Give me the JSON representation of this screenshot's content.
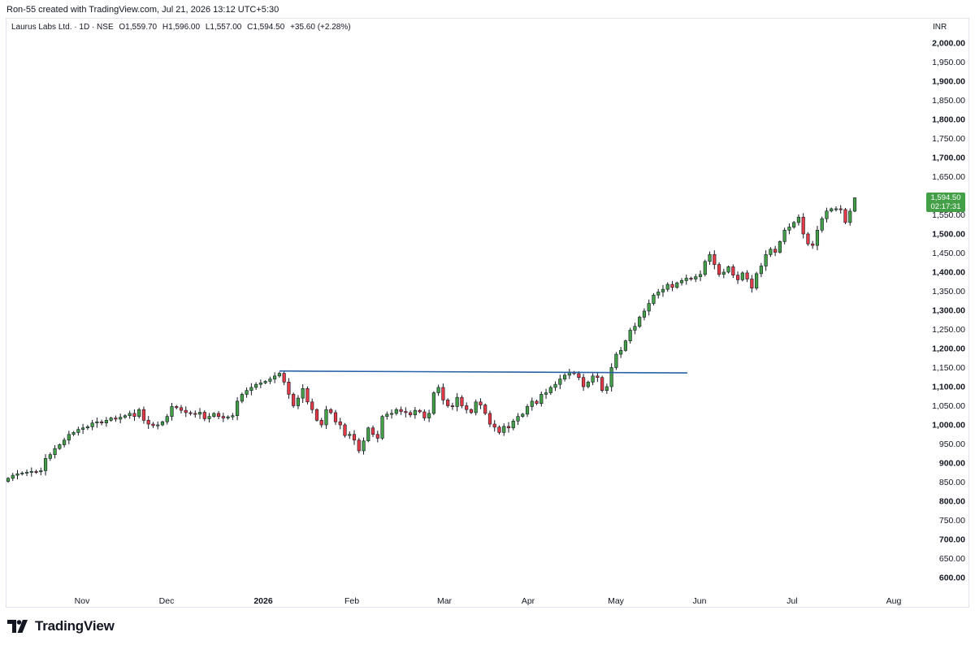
{
  "attribution": "Ron-55 created with TradingView.com, Jul 21, 2026 13:12 UTC+5:30",
  "legend": {
    "symbol": "Laurus Labs Ltd. · 1D · NSE",
    "open": "O1,559.70",
    "high": "H1,596.00",
    "low": "L1,557.00",
    "close": "C1,594.50",
    "change": "+35.60 (+2.28%)"
  },
  "currency": "INR",
  "price_tag": {
    "price": "1,594.50",
    "countdown": "02:17:31"
  },
  "brand": "TradingView",
  "colors": {
    "up": "#43a047",
    "down": "#e53946",
    "trendline": "#2962a8",
    "grid": "#e0e3eb"
  },
  "chart_data": {
    "type": "candlestick",
    "y_axis": {
      "range": [
        580,
        2020
      ],
      "ticks": [
        "2,000.00",
        "1,950.00",
        "1,900.00",
        "1,850.00",
        "1,800.00",
        "1,750.00",
        "1,700.00",
        "1,650.00",
        "1,600.00",
        "1,550.00",
        "1,500.00",
        "1,450.00",
        "1,400.00",
        "1,350.00",
        "1,300.00",
        "1,250.00",
        "1,200.00",
        "1,150.00",
        "1,100.00",
        "1,050.00",
        "1,000.00",
        "950.00",
        "900.00",
        "850.00",
        "800.00",
        "750.00",
        "700.00",
        "650.00",
        "600.00"
      ],
      "tick_values": [
        2000,
        1950,
        1900,
        1850,
        1800,
        1750,
        1700,
        1650,
        1600,
        1550,
        1500,
        1450,
        1400,
        1350,
        1300,
        1250,
        1200,
        1150,
        1100,
        1050,
        1000,
        950,
        900,
        850,
        800,
        750,
        700,
        650,
        600
      ],
      "bold_ticks": [
        "2,000.00",
        "1,900.00",
        "1,800.00",
        "1,700.00",
        "1,600.00",
        "1,500.00",
        "1,400.00",
        "1,300.00",
        "1,200.00",
        "1,100.00",
        "1,000.00",
        "900.00",
        "800.00",
        "700.00",
        "600.00"
      ]
    },
    "x_axis": {
      "ticks": [
        "Nov",
        "Dec",
        "2026",
        "Feb",
        "Mar",
        "Apr",
        "May",
        "Jun",
        "Jul",
        "Aug"
      ],
      "bold_ticks": [
        "2026"
      ]
    },
    "trendline": {
      "start_close": 1141,
      "end_close": 1136
    },
    "closes": [
      860,
      868,
      872,
      874,
      876,
      878,
      877,
      880,
      912,
      922,
      938,
      948,
      960,
      975,
      980,
      988,
      992,
      995,
      1005,
      1008,
      1005,
      1012,
      1018,
      1015,
      1020,
      1024,
      1030,
      1022,
      1040,
      1012,
      1002,
      998,
      1000,
      1008,
      1022,
      1048,
      1045,
      1038,
      1032,
      1030,
      1028,
      1033,
      1016,
      1022,
      1030,
      1022,
      1018,
      1021,
      1024,
      1062,
      1080,
      1090,
      1098,
      1106,
      1110,
      1114,
      1120,
      1128,
      1135,
      1112,
      1080,
      1050,
      1070,
      1095,
      1060,
      1040,
      1012,
      1000,
      1040,
      1032,
      1008,
      1000,
      972,
      975,
      960,
      932,
      958,
      992,
      975,
      965,
      1022,
      1028,
      1030,
      1040,
      1035,
      1032,
      1026,
      1038,
      1034,
      1018,
      1030,
      1084,
      1098,
      1065,
      1050,
      1048,
      1072,
      1050,
      1040,
      1032,
      1060,
      1052,
      1030,
      1002,
      994,
      980,
      996,
      992,
      1010,
      1022,
      1028,
      1048,
      1062,
      1056,
      1080,
      1084,
      1098,
      1106,
      1120,
      1130,
      1138,
      1134,
      1124,
      1100,
      1112,
      1128,
      1124,
      1090,
      1100,
      1150,
      1185,
      1195,
      1220,
      1248,
      1258,
      1282,
      1298,
      1318,
      1340,
      1348,
      1355,
      1368,
      1360,
      1372,
      1378,
      1384,
      1382,
      1388,
      1394,
      1428,
      1446,
      1420,
      1394,
      1400,
      1414,
      1392,
      1380,
      1398,
      1382,
      1358,
      1396,
      1416,
      1446,
      1460,
      1452,
      1480,
      1510,
      1518,
      1530,
      1544,
      1500,
      1474,
      1470,
      1510,
      1540,
      1560,
      1566,
      1566,
      1564,
      1530,
      1559.7,
      1594.5
    ]
  }
}
